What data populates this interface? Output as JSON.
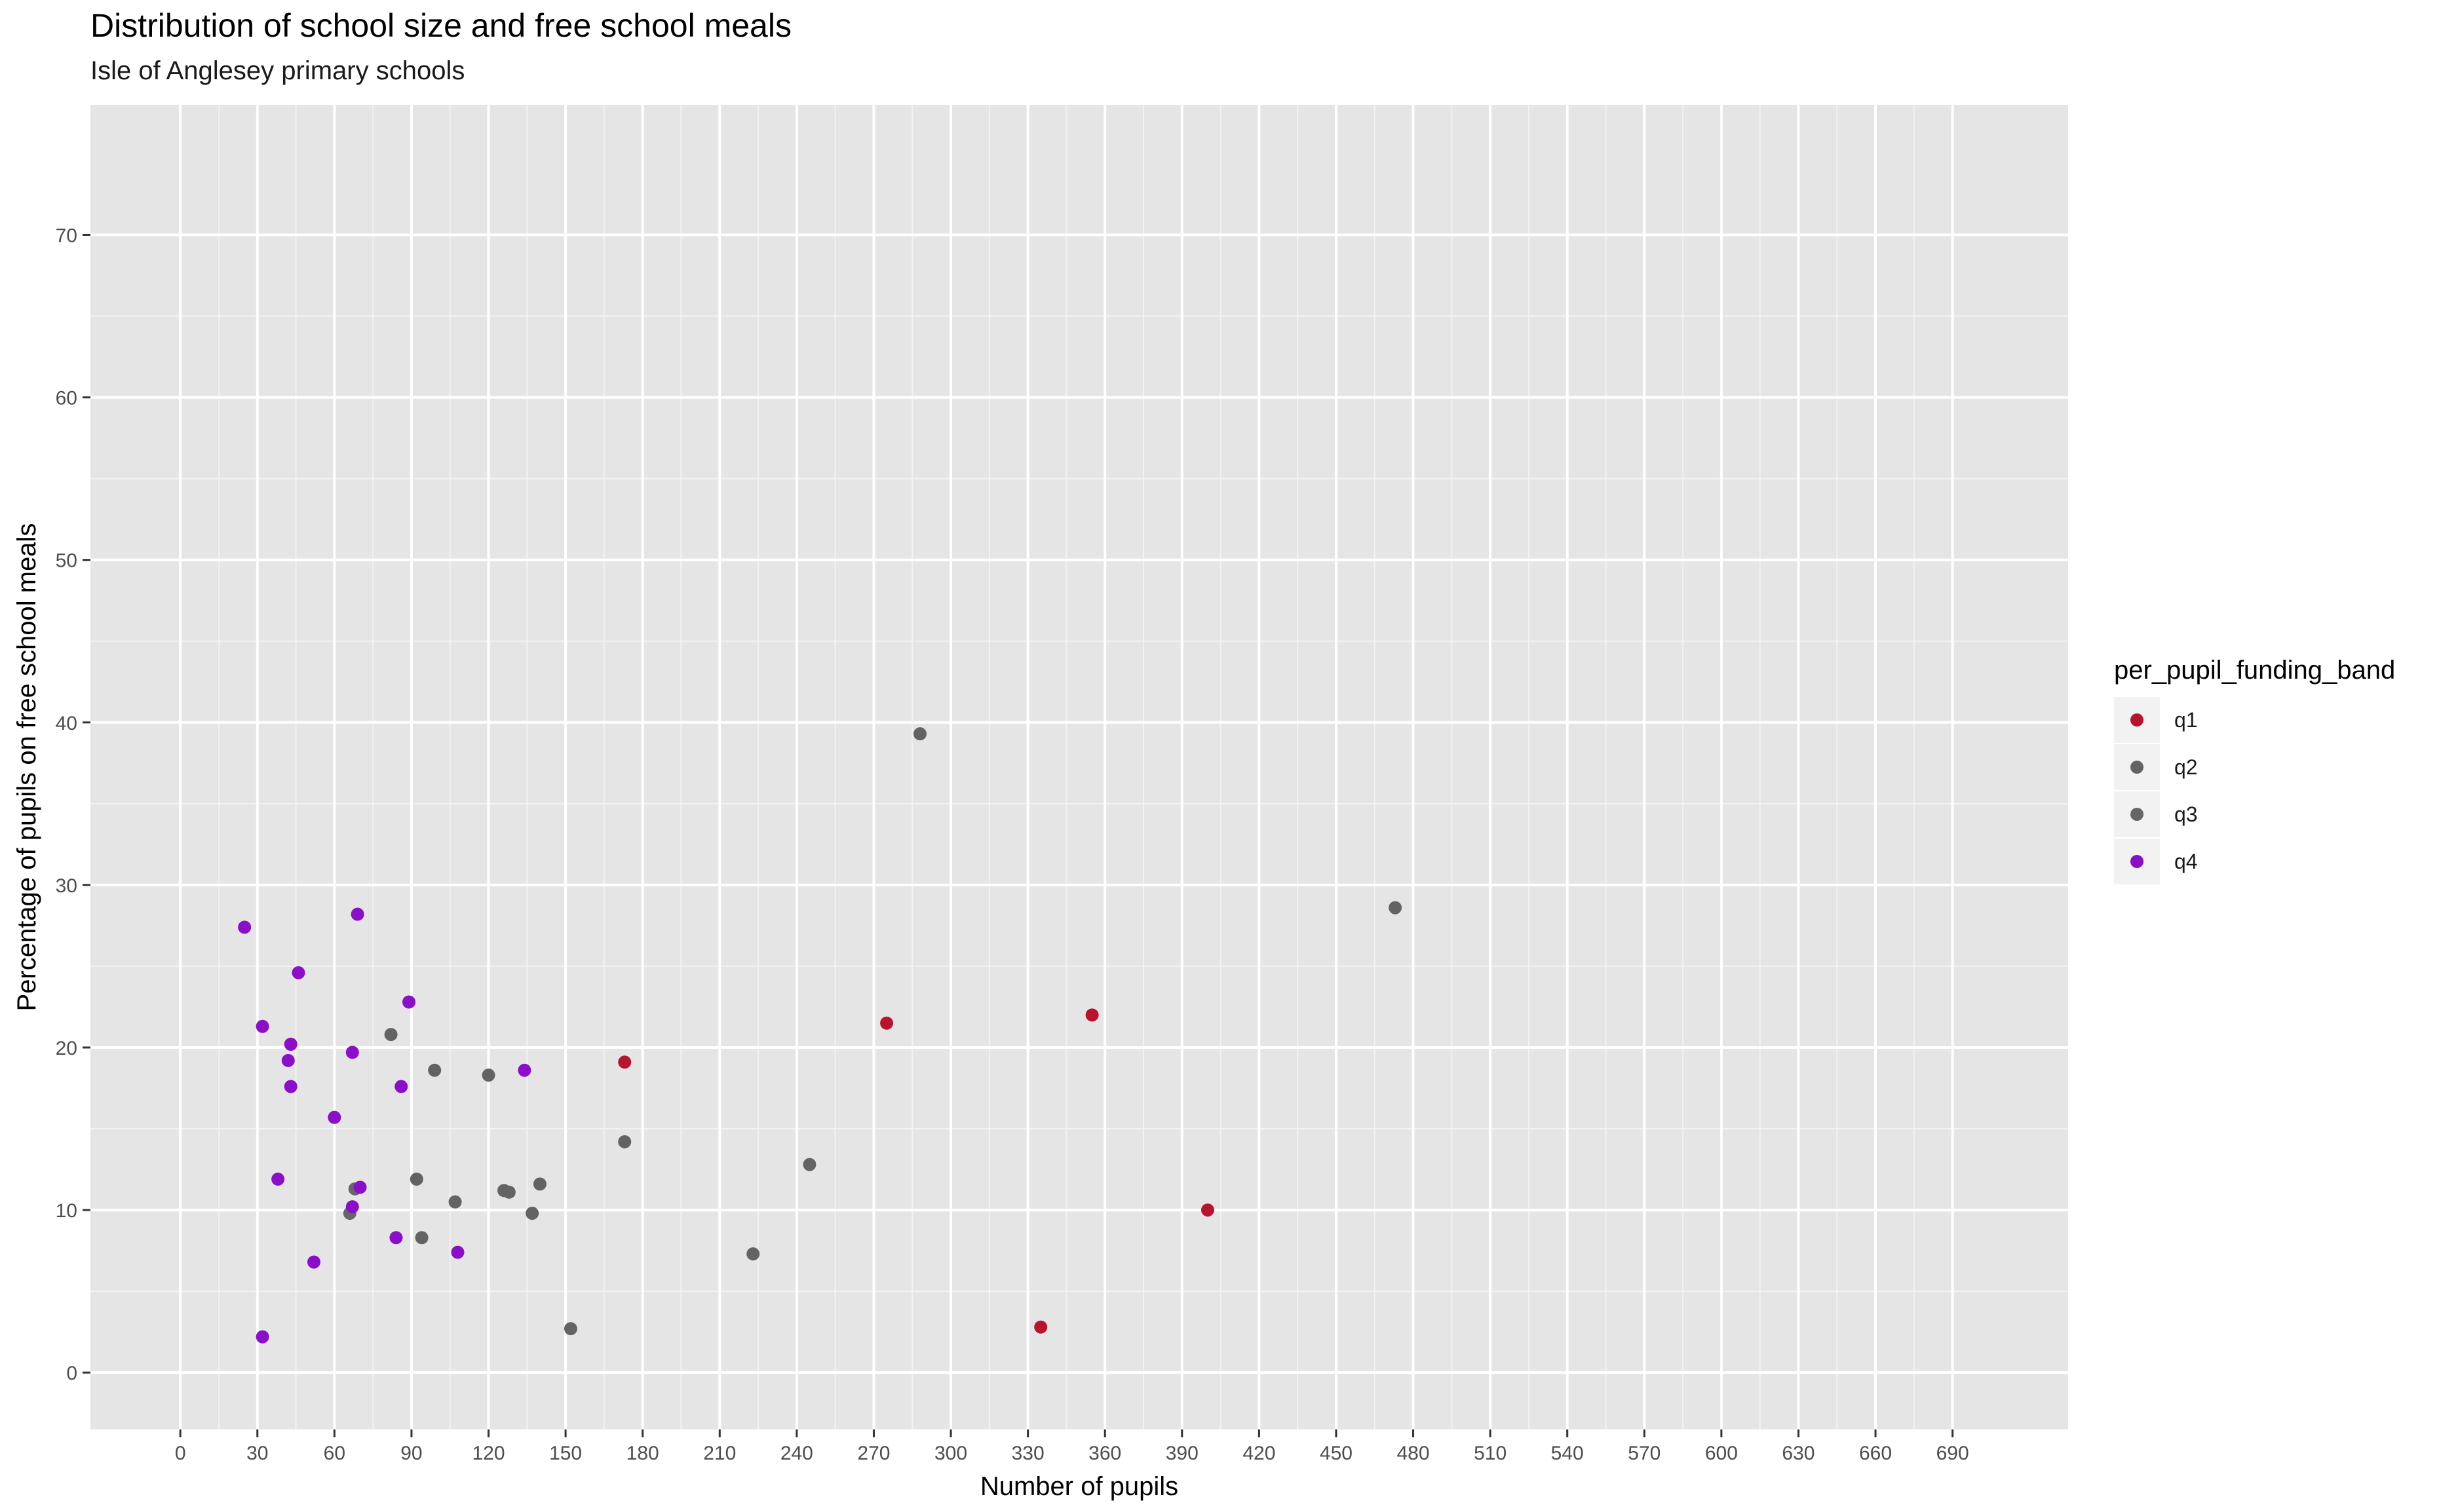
{
  "title": "Distribution of school size and free school meals",
  "subtitle": "Isle of Anglesey primary schools",
  "chart_data": {
    "type": "scatter",
    "title": "Distribution of school size and free school meals",
    "subtitle": "Isle of Anglesey primary schools",
    "xlabel": "Number of pupils",
    "ylabel": "Percentage of pupils on free school meals",
    "xlim": [
      -35,
      735
    ],
    "ylim": [
      -3.5,
      78
    ],
    "x_ticks": [
      0,
      30,
      60,
      90,
      120,
      150,
      180,
      210,
      240,
      270,
      300,
      330,
      360,
      390,
      420,
      450,
      480,
      510,
      540,
      570,
      600,
      630,
      660,
      690
    ],
    "y_ticks": [
      0,
      10,
      20,
      30,
      40,
      50,
      60,
      70
    ],
    "grid": true,
    "legend_position": "right",
    "legend_title": "per_pupil_funding_band",
    "series": [
      {
        "name": "q1",
        "color": "#b8142e",
        "points": [
          [
            173,
            19.1
          ],
          [
            275,
            21.5
          ],
          [
            355,
            22.0
          ],
          [
            335,
            2.8
          ],
          [
            400,
            10.0
          ]
        ]
      },
      {
        "name": "q2",
        "color": "#636363",
        "points": [
          [
            82,
            20.8
          ],
          [
            99,
            18.6
          ],
          [
            120,
            18.3
          ],
          [
            173,
            14.2
          ],
          [
            288,
            39.3
          ],
          [
            473,
            28.6
          ],
          [
            245,
            12.8
          ],
          [
            223,
            7.3
          ],
          [
            152,
            2.7
          ],
          [
            92,
            11.9
          ],
          [
            107,
            10.5
          ],
          [
            126,
            11.2
          ],
          [
            128,
            11.1
          ],
          [
            140,
            11.6
          ],
          [
            137,
            9.8
          ],
          [
            94,
            8.3
          ]
        ]
      },
      {
        "name": "q3",
        "color": "#666666",
        "points": [
          [
            66,
            9.8
          ],
          [
            68,
            11.3
          ]
        ]
      },
      {
        "name": "q4",
        "color": "#8b0ec9",
        "points": [
          [
            25,
            27.4
          ],
          [
            69,
            28.2
          ],
          [
            46,
            24.6
          ],
          [
            89,
            22.8
          ],
          [
            32,
            21.3
          ],
          [
            43,
            20.2
          ],
          [
            67,
            19.7
          ],
          [
            42,
            19.2
          ],
          [
            43,
            17.6
          ],
          [
            86,
            17.6
          ],
          [
            60,
            15.7
          ],
          [
            134,
            18.6
          ],
          [
            38,
            11.9
          ],
          [
            70,
            11.4
          ],
          [
            67,
            10.2
          ],
          [
            84,
            8.3
          ],
          [
            52,
            6.8
          ],
          [
            108,
            7.4
          ],
          [
            32,
            2.2
          ]
        ]
      }
    ]
  }
}
